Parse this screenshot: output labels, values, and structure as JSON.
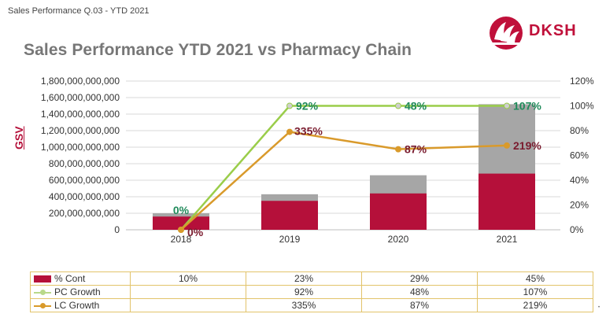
{
  "header": {
    "subtitle": "Sales Performance Q.03 - YTD 2021",
    "title": "Sales Performance YTD 2021 vs Pharmacy Chain",
    "logo_text": "DKSH"
  },
  "colors": {
    "bar_cont": "#b5103a",
    "bar_total": "#a6a6a6",
    "pc_growth": "#9acd4a",
    "lc_growth": "#d99a2b",
    "pc_label": "#1f8a5a",
    "lc_label": "#7a1b2e",
    "brand": "#c0103a"
  },
  "chart_data": {
    "type": "bar",
    "categories": [
      "2018",
      "2019",
      "2020",
      "2021"
    ],
    "ylabel": "GSV",
    "ylim": [
      0,
      1800000000000
    ],
    "y_ticks": [
      "0",
      "200,000,000,000",
      "400,000,000,000",
      "600,000,000,000",
      "800,000,000,000",
      "1,000,000,000,000",
      "1,200,000,000,000",
      "1,400,000,000,000",
      "1,600,000,000,000",
      "1,800,000,000,000"
    ],
    "y2lim": [
      0,
      120
    ],
    "y2_ticks": [
      "0%",
      "20%",
      "40%",
      "60%",
      "80%",
      "100%",
      "120%"
    ],
    "bar_total_values": [
      200000000000,
      430000000000,
      660000000000,
      1520000000000
    ],
    "series": [
      {
        "name": "% Cont",
        "kind": "bar",
        "values": [
          160000000000,
          350000000000,
          440000000000,
          680000000000
        ],
        "labels": [
          "10%",
          "23%",
          "29%",
          "45%"
        ]
      },
      {
        "name": "PC Growth",
        "kind": "line",
        "axis": "right",
        "values": [
          0,
          100,
          100,
          100
        ],
        "labels": [
          "0%",
          "92%",
          "48%",
          "107%"
        ]
      },
      {
        "name": "LC Growth",
        "kind": "line",
        "axis": "right",
        "values": [
          0,
          79,
          65,
          68
        ],
        "labels": [
          "0%",
          "335%",
          "87%",
          "219%"
        ]
      }
    ],
    "grid": true,
    "legend": "bottom-table"
  },
  "table": {
    "rows": [
      {
        "label": "% Cont",
        "values": [
          "10%",
          "23%",
          "29%",
          "45%"
        ]
      },
      {
        "label": "PC Growth",
        "values": [
          "",
          "92%",
          "48%",
          "107%"
        ]
      },
      {
        "label": "LC Growth",
        "values": [
          "",
          "335%",
          "87%",
          "219%"
        ]
      }
    ]
  }
}
